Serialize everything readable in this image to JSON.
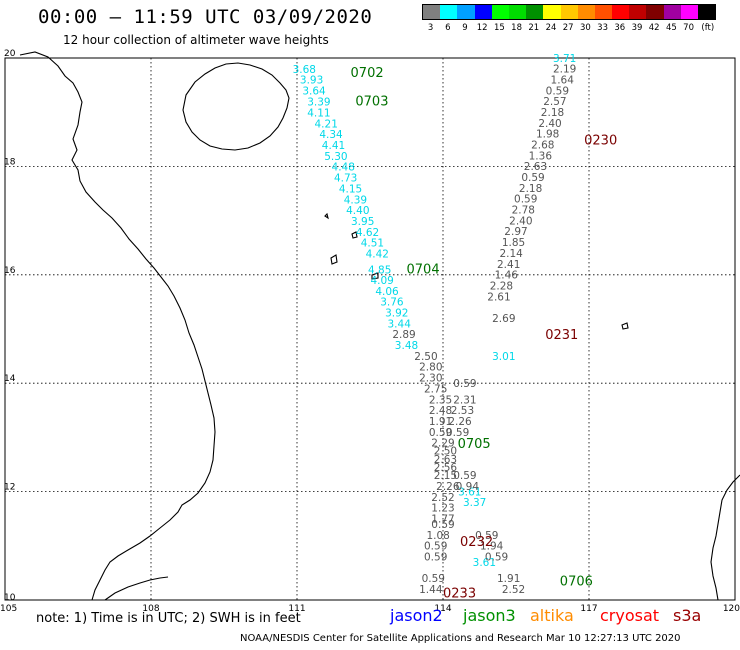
{
  "header": {
    "title": "00:00 – 11:59 UTC 03/09/2020",
    "subtitle": "12 hour collection of altimeter wave heights"
  },
  "colorbar": {
    "colors": [
      "#808080",
      "#00ffff",
      "#00a0ff",
      "#0000ff",
      "#00ff00",
      "#00dd00",
      "#009000",
      "#ffff00",
      "#ffc800",
      "#ff8c00",
      "#ff5000",
      "#ff0000",
      "#c00000",
      "#800000",
      "#a000a0",
      "#ff00ff",
      "#000000"
    ],
    "labels": [
      "3",
      "6",
      "9",
      "12",
      "15",
      "18",
      "21",
      "24",
      "27",
      "30",
      "33",
      "36",
      "39",
      "42",
      "45",
      "70",
      "(ft)"
    ]
  },
  "map": {
    "lon_ticks": [
      "105",
      "108",
      "111",
      "114",
      "117",
      "120"
    ],
    "lat_ticks": [
      "20",
      "18",
      "16",
      "14",
      "12",
      "10"
    ],
    "lon_range": [
      105,
      120
    ],
    "lat_range": [
      10,
      20
    ],
    "grid": true,
    "time_labels": [
      {
        "text": "0702",
        "lon": 112.1,
        "lat": 19.65,
        "color": "#007000"
      },
      {
        "text": "0703",
        "lon": 112.2,
        "lat": 19.12,
        "color": "#007000"
      },
      {
        "text": "0230",
        "lon": 116.9,
        "lat": 18.4,
        "color": "#7a0000"
      },
      {
        "text": "0704",
        "lon": 113.25,
        "lat": 16.02,
        "color": "#007000"
      },
      {
        "text": "0231",
        "lon": 116.1,
        "lat": 14.82,
        "color": "#7a0000"
      },
      {
        "text": "0705",
        "lon": 114.3,
        "lat": 12.8,
        "color": "#007000"
      },
      {
        "text": "0232",
        "lon": 114.35,
        "lat": 11.0,
        "color": "#7a0000"
      },
      {
        "text": "0706",
        "lon": 116.4,
        "lat": 10.27,
        "color": "#007000"
      },
      {
        "text": "0233",
        "lon": 114.0,
        "lat": 10.05,
        "color": "#7a0000"
      }
    ],
    "tracks": [
      {
        "name": "cyan",
        "color": "#00d8e8",
        "points": [
          {
            "lon": 111.15,
            "lat": 19.72,
            "v": "3.68"
          },
          {
            "lon": 111.3,
            "lat": 19.53,
            "v": "3.93"
          },
          {
            "lon": 111.35,
            "lat": 19.33,
            "v": "3.64"
          },
          {
            "lon": 111.45,
            "lat": 19.12,
            "v": "3.39"
          },
          {
            "lon": 111.45,
            "lat": 18.92,
            "v": "4.11"
          },
          {
            "lon": 111.6,
            "lat": 18.72,
            "v": "4.21"
          },
          {
            "lon": 111.7,
            "lat": 18.52,
            "v": "4.34"
          },
          {
            "lon": 111.75,
            "lat": 18.32,
            "v": "4.41"
          },
          {
            "lon": 111.8,
            "lat": 18.12,
            "v": "5.30"
          },
          {
            "lon": 111.95,
            "lat": 17.92,
            "v": "4.48"
          },
          {
            "lon": 112.0,
            "lat": 17.72,
            "v": "4.73"
          },
          {
            "lon": 112.1,
            "lat": 17.52,
            "v": "4.15"
          },
          {
            "lon": 112.2,
            "lat": 17.32,
            "v": "4.39"
          },
          {
            "lon": 112.25,
            "lat": 17.12,
            "v": "4.40"
          },
          {
            "lon": 112.35,
            "lat": 16.92,
            "v": "3.95"
          },
          {
            "lon": 112.45,
            "lat": 16.72,
            "v": "4.62"
          },
          {
            "lon": 112.55,
            "lat": 16.52,
            "v": "4.51"
          },
          {
            "lon": 112.65,
            "lat": 16.32,
            "v": "4.42"
          },
          {
            "lon": 112.7,
            "lat": 16.02,
            "v": "4.85"
          },
          {
            "lon": 112.75,
            "lat": 15.83,
            "v": "4.09"
          },
          {
            "lon": 112.85,
            "lat": 15.63,
            "v": "4.06"
          },
          {
            "lon": 112.95,
            "lat": 15.43,
            "v": "3.76"
          },
          {
            "lon": 113.05,
            "lat": 15.23,
            "v": "3.92"
          },
          {
            "lon": 113.1,
            "lat": 15.03,
            "v": "3.44"
          },
          {
            "lon": 113.25,
            "lat": 14.63,
            "v": "3.48"
          },
          {
            "lon": 115.25,
            "lat": 14.43,
            "v": "3.01"
          },
          {
            "lon": 114.55,
            "lat": 11.93,
            "v": "3.61"
          },
          {
            "lon": 114.65,
            "lat": 11.73,
            "v": "3.37"
          },
          {
            "lon": 114.85,
            "lat": 10.63,
            "v": "3.61"
          }
        ]
      },
      {
        "name": "gray",
        "color": "#555555",
        "points": [
          {
            "lon": 116.5,
            "lat": 19.93,
            "v": "3.71",
            "color": "#00d8e8"
          },
          {
            "lon": 116.5,
            "lat": 19.73,
            "v": "2.19"
          },
          {
            "lon": 116.45,
            "lat": 19.53,
            "v": "1.64"
          },
          {
            "lon": 116.35,
            "lat": 19.33,
            "v": "0.59"
          },
          {
            "lon": 116.3,
            "lat": 19.13,
            "v": "2.57"
          },
          {
            "lon": 116.25,
            "lat": 18.93,
            "v": "2.18"
          },
          {
            "lon": 116.2,
            "lat": 18.73,
            "v": "2.40"
          },
          {
            "lon": 116.15,
            "lat": 18.53,
            "v": "1.98"
          },
          {
            "lon": 116.05,
            "lat": 18.33,
            "v": "2.68"
          },
          {
            "lon": 116.0,
            "lat": 18.13,
            "v": "1.36"
          },
          {
            "lon": 115.9,
            "lat": 17.93,
            "v": "2.63"
          },
          {
            "lon": 115.85,
            "lat": 17.73,
            "v": "0.59"
          },
          {
            "lon": 115.8,
            "lat": 17.53,
            "v": "2.18"
          },
          {
            "lon": 115.7,
            "lat": 17.33,
            "v": "0.59"
          },
          {
            "lon": 115.65,
            "lat": 17.13,
            "v": "2.78"
          },
          {
            "lon": 115.6,
            "lat": 16.93,
            "v": "2.40"
          },
          {
            "lon": 115.5,
            "lat": 16.73,
            "v": "2.97"
          },
          {
            "lon": 115.45,
            "lat": 16.53,
            "v": "1.85"
          },
          {
            "lon": 115.4,
            "lat": 16.33,
            "v": "2.14"
          },
          {
            "lon": 115.35,
            "lat": 16.13,
            "v": "2.41"
          },
          {
            "lon": 115.3,
            "lat": 15.93,
            "v": "1.46"
          },
          {
            "lon": 115.2,
            "lat": 15.73,
            "v": "2.28"
          },
          {
            "lon": 115.15,
            "lat": 15.53,
            "v": "2.61"
          },
          {
            "lon": 115.25,
            "lat": 15.13,
            "v": "2.69"
          },
          {
            "lon": 113.2,
            "lat": 14.83,
            "v": "2.89"
          },
          {
            "lon": 113.65,
            "lat": 14.43,
            "v": "2.50"
          },
          {
            "lon": 113.75,
            "lat": 14.23,
            "v": "2.80"
          },
          {
            "lon": 113.75,
            "lat": 14.03,
            "v": "2.30"
          },
          {
            "lon": 113.85,
            "lat": 13.83,
            "v": "2.75"
          },
          {
            "lon": 114.45,
            "lat": 13.93,
            "v": "0.59"
          },
          {
            "lon": 113.95,
            "lat": 13.63,
            "v": "2.35"
          },
          {
            "lon": 114.45,
            "lat": 13.63,
            "v": "2.31"
          },
          {
            "lon": 113.95,
            "lat": 13.43,
            "v": "2.48"
          },
          {
            "lon": 114.4,
            "lat": 13.43,
            "v": "2.53"
          },
          {
            "lon": 113.95,
            "lat": 13.23,
            "v": "1.91"
          },
          {
            "lon": 114.35,
            "lat": 13.23,
            "v": "2.26"
          },
          {
            "lon": 113.95,
            "lat": 13.03,
            "v": "0.59"
          },
          {
            "lon": 114.3,
            "lat": 13.03,
            "v": "0.59"
          },
          {
            "lon": 114.0,
            "lat": 12.83,
            "v": "2.29"
          },
          {
            "lon": 114.05,
            "lat": 12.68,
            "v": "2.50"
          },
          {
            "lon": 114.05,
            "lat": 12.53,
            "v": "2.63"
          },
          {
            "lon": 114.05,
            "lat": 12.38,
            "v": "2.56"
          },
          {
            "lon": 114.05,
            "lat": 12.23,
            "v": "2.15"
          },
          {
            "lon": 114.45,
            "lat": 12.23,
            "v": "0.59"
          },
          {
            "lon": 114.1,
            "lat": 12.03,
            "v": "2.26"
          },
          {
            "lon": 114.5,
            "lat": 12.03,
            "v": "0.94"
          },
          {
            "lon": 114.0,
            "lat": 11.83,
            "v": "2.52"
          },
          {
            "lon": 114.0,
            "lat": 11.63,
            "v": "1.23"
          },
          {
            "lon": 114.0,
            "lat": 11.43,
            "v": "1.77"
          },
          {
            "lon": 114.0,
            "lat": 11.33,
            "v": "0.59"
          },
          {
            "lon": 113.9,
            "lat": 11.13,
            "v": "1.08"
          },
          {
            "lon": 114.9,
            "lat": 11.13,
            "v": "0.59"
          },
          {
            "lon": 113.85,
            "lat": 10.93,
            "v": "0.59"
          },
          {
            "lon": 115.0,
            "lat": 10.93,
            "v": "1.94"
          },
          {
            "lon": 113.85,
            "lat": 10.73,
            "v": "0.59"
          },
          {
            "lon": 115.1,
            "lat": 10.73,
            "v": "0.59"
          },
          {
            "lon": 113.8,
            "lat": 10.33,
            "v": "0.59"
          },
          {
            "lon": 115.35,
            "lat": 10.33,
            "v": "1.91"
          },
          {
            "lon": 113.75,
            "lat": 10.13,
            "v": "1.44"
          },
          {
            "lon": 115.45,
            "lat": 10.13,
            "v": "2.52"
          }
        ]
      }
    ]
  },
  "footer": {
    "note": "note: 1) Time is in UTC; 2) SWH is in feet",
    "credit": "NOAA/NESDIS Center for Satellite Applications and Research    Mar 10 12:27:13 UTC 2020",
    "legend": {
      "jason2": "jason2",
      "jason3": "jason3",
      "altika": "altika",
      "cryosat": "cryosat",
      "s3a": "s3a"
    }
  }
}
